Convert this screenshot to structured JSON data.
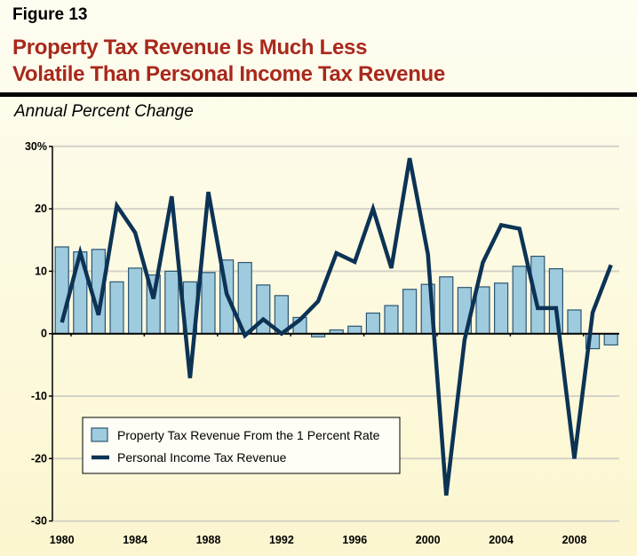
{
  "figure_label": "Figure 13",
  "title_lines": [
    "Property Tax Revenue Is Much Less",
    "Volatile Than Personal Income Tax Revenue"
  ],
  "subtitle": "Annual Percent Change",
  "chart_data": {
    "type": "bar+line",
    "title": "Property Tax Revenue Is Much Less Volatile Than Personal Income Tax Revenue",
    "ylabel": "Annual Percent Change",
    "ylim": [
      -30,
      30
    ],
    "yticks": [
      -30,
      -20,
      -10,
      0,
      10,
      20,
      30
    ],
    "ytick_labels": [
      "-30",
      "-20",
      "-10",
      "0",
      "10",
      "20",
      "30%"
    ],
    "xticks": [
      1980,
      1984,
      1988,
      1992,
      1996,
      2000,
      2004,
      2008
    ],
    "xtick_labels": [
      "1980",
      "1984",
      "1988",
      "1992",
      "1996",
      "2000",
      "2004",
      "2008"
    ],
    "grid": "horizontal",
    "legend_position": "bottom-left",
    "x": [
      1980,
      1981,
      1982,
      1983,
      1984,
      1985,
      1986,
      1987,
      1988,
      1989,
      1990,
      1991,
      1992,
      1993,
      1994,
      1995,
      1996,
      1997,
      1998,
      1999,
      2000,
      2001,
      2002,
      2003,
      2004,
      2005,
      2006,
      2007,
      2008,
      2009,
      2010
    ],
    "series": [
      {
        "name": "Property Tax Revenue From the 1 Percent Rate",
        "type": "bar",
        "color": "#9ecbde",
        "values": [
          13.9,
          13.1,
          13.5,
          8.3,
          10.5,
          9.4,
          10.0,
          8.3,
          9.8,
          11.8,
          11.4,
          7.8,
          6.1,
          2.6,
          -0.5,
          0.6,
          1.2,
          3.3,
          4.5,
          7.1,
          7.9,
          9.1,
          7.4,
          7.5,
          8.1,
          10.8,
          12.4,
          10.4,
          3.8,
          -2.4,
          -1.8
        ]
      },
      {
        "name": "Personal Income Tax Revenue",
        "type": "line",
        "color": "#0c3355",
        "values": [
          1.8,
          13.0,
          3.0,
          20.5,
          16.2,
          5.6,
          22.0,
          -7.1,
          22.7,
          6.4,
          -0.3,
          2.3,
          0.0,
          2.2,
          5.2,
          12.9,
          11.5,
          20.0,
          10.5,
          28.1,
          12.7,
          -25.9,
          -1.0,
          11.4,
          17.4,
          16.8,
          4.1,
          4.1,
          -20.0,
          3.4,
          11.0
        ]
      }
    ]
  }
}
